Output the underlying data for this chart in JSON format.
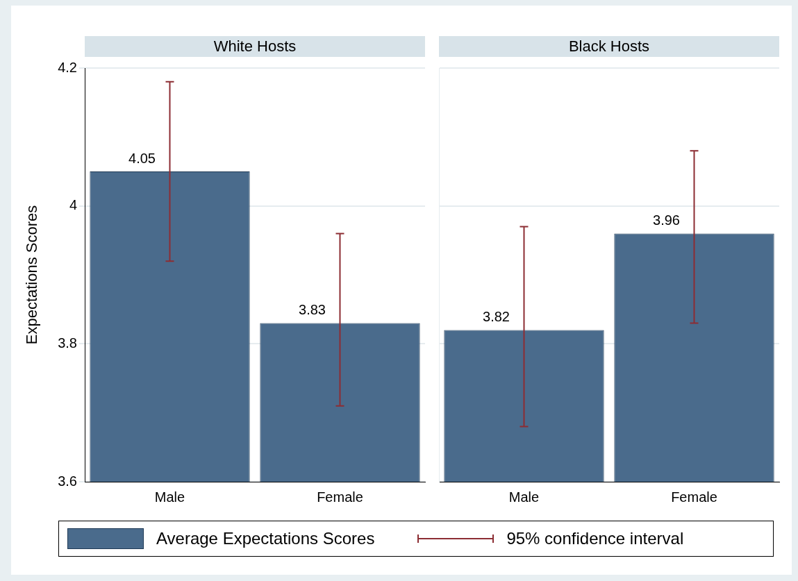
{
  "chart_data": [
    {
      "type": "bar",
      "title": "White Hosts",
      "ylabel": "Expectations Scores",
      "categories": [
        "Male",
        "Female"
      ],
      "series": [
        {
          "name": "Average Expectations Scores",
          "color": "#4a6b8c",
          "values": [
            4.05,
            3.83
          ],
          "errors": [
            [
              3.92,
              4.18
            ],
            [
              3.71,
              3.96
            ]
          ]
        }
      ],
      "ylim": [
        3.6,
        4.2
      ],
      "yticks": [
        3.6,
        3.8,
        4,
        4.2
      ],
      "grid": "y",
      "data_labels": true,
      "legend": "bottom",
      "annotations": [
        "95% confidence interval"
      ]
    },
    {
      "type": "bar",
      "title": "Black Hosts",
      "categories": [
        "Male",
        "Female"
      ],
      "series": [
        {
          "color": "#4a6b8c",
          "values": [
            3.82,
            3.96
          ],
          "errors": [
            [
              3.68,
              3.97
            ],
            [
              3.83,
              4.08
            ]
          ]
        }
      ],
      "ylim": [
        3.6,
        4.2
      ],
      "yticks": [
        3.6,
        3.8,
        4,
        4.2
      ],
      "grid": "y",
      "data_labels": true,
      "tick_labels": "x"
    }
  ]
}
